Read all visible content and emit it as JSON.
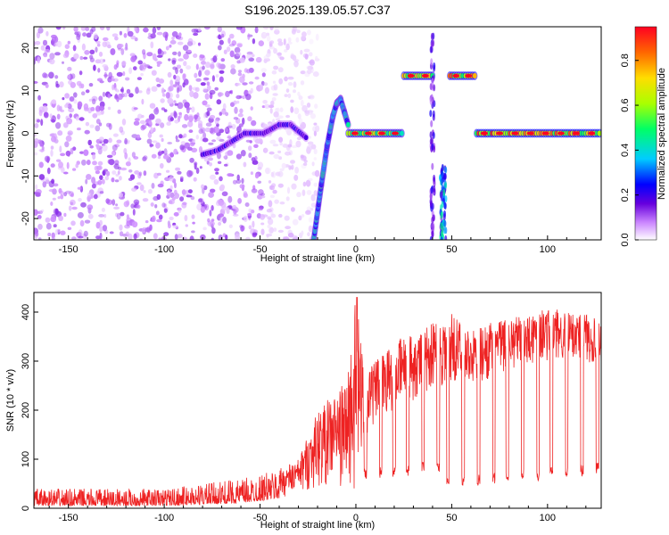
{
  "title": "S196.2025.139.05.57.C37",
  "colors": {
    "snr_line": "#ee2222",
    "axis": "#000000",
    "background": "#ffffff"
  },
  "chart_data": [
    {
      "type": "heatmap",
      "title": "S196.2025.139.05.57.C37",
      "xlabel": "Height of straight line (km)",
      "ylabel": "Frequency (Hz)",
      "xlim": [
        -168,
        128
      ],
      "ylim": [
        -25,
        25
      ],
      "xticks": [
        -150,
        -100,
        -50,
        0,
        50,
        100
      ],
      "yticks": [
        -20,
        -10,
        0,
        10,
        20
      ],
      "colorbar": {
        "label": "Normalized spectral amplitude",
        "range": [
          0.0,
          0.95
        ],
        "ticks": [
          0.0,
          0.2,
          0.4,
          0.6,
          0.8
        ],
        "tick_labels": [
          "0.0",
          "0.2",
          "0.4",
          "0.6",
          "0.8"
        ],
        "colormap": [
          "#ffffff",
          "#cc88ff",
          "#6600dd",
          "#0000ff",
          "#00ccff",
          "#00ff66",
          "#aaff00",
          "#ffdd00",
          "#ff6600",
          "#ff0022"
        ]
      },
      "features": [
        {
          "kind": "noise",
          "x_range": [
            -168,
            -48
          ],
          "f_range": [
            -25,
            25
          ],
          "amplitude": 0.15
        },
        {
          "kind": "noise",
          "x_range": [
            -48,
            -20
          ],
          "f_range": [
            -25,
            25
          ],
          "amplitude": 0.06
        },
        {
          "kind": "track",
          "points": [
            [
              -80,
              -5
            ],
            [
              -72,
              -4
            ],
            [
              -65,
              -2
            ],
            [
              -58,
              0
            ],
            [
              -48,
              0
            ],
            [
              -40,
              2
            ],
            [
              -34,
              2
            ],
            [
              -26,
              -1
            ]
          ],
          "amplitude": 0.3
        },
        {
          "kind": "track",
          "points": [
            [
              -22,
              -25
            ],
            [
              -18,
              -12
            ],
            [
              -15,
              -3
            ],
            [
              -12,
              4
            ],
            [
              -10,
              7
            ],
            [
              -8,
              8
            ],
            [
              -6,
              5
            ],
            [
              -4,
              2
            ]
          ],
          "amplitude": 0.5
        },
        {
          "kind": "track",
          "points": [
            [
              -4,
              0
            ],
            [
              24,
              0
            ]
          ],
          "amplitude": 0.75
        },
        {
          "kind": "track",
          "points": [
            [
              25,
              13.5
            ],
            [
              40,
              13.5
            ]
          ],
          "amplitude": 0.85
        },
        {
          "kind": "track",
          "points": [
            [
              49,
              13.5
            ],
            [
              62,
              13.5
            ]
          ],
          "amplitude": 0.85
        },
        {
          "kind": "track",
          "points": [
            [
              63,
              0
            ],
            [
              127,
              0
            ]
          ],
          "amplitude": 0.9
        },
        {
          "kind": "stripe",
          "x_range": [
            39,
            41
          ],
          "f_range": [
            -25,
            25
          ],
          "amplitude": 0.2
        },
        {
          "kind": "stripe",
          "x_range": [
            44,
            47
          ],
          "f_range": [
            -25,
            -8
          ],
          "amplitude": 0.35
        }
      ]
    },
    {
      "type": "line",
      "xlabel": "Height of straight line (km)",
      "ylabel": "SNR (10 * v/v)",
      "xlim": [
        -168,
        128
      ],
      "ylim": [
        0,
        440
      ],
      "xticks": [
        -150,
        -100,
        -50,
        0,
        50,
        100
      ],
      "yticks": [
        0,
        100,
        200,
        300,
        400
      ],
      "series": [
        {
          "envelope_x": [
            -168,
            -100,
            -60,
            -40,
            -30,
            -20,
            -10,
            -5,
            0,
            5,
            10,
            20,
            30,
            40,
            50,
            60,
            70,
            80,
            90,
            100,
            110,
            120,
            128
          ],
          "envelope_upper": [
            40,
            40,
            60,
            80,
            100,
            200,
            240,
            260,
            430,
            280,
            300,
            340,
            360,
            380,
            400,
            360,
            380,
            390,
            400,
            410,
            400,
            400,
            380
          ],
          "envelope_lower": [
            5,
            5,
            10,
            20,
            30,
            40,
            50,
            30,
            20,
            140,
            170,
            200,
            220,
            240,
            250,
            250,
            260,
            280,
            290,
            300,
            300,
            300,
            280
          ],
          "dips_x": [
            5,
            13,
            20,
            27,
            35,
            43,
            48,
            56,
            64,
            72,
            79,
            87,
            95,
            102,
            110,
            118,
            126
          ],
          "dips_min": [
            60,
            60,
            60,
            65,
            70,
            70,
            40,
            45,
            45,
            50,
            50,
            55,
            55,
            60,
            60,
            65,
            70
          ]
        }
      ]
    }
  ]
}
